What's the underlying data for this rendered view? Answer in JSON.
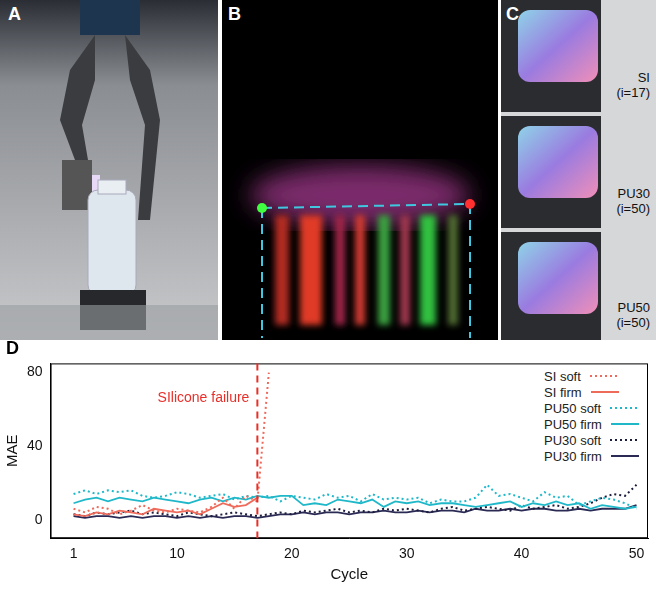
{
  "figure": {
    "panel_letters": [
      "A",
      "B",
      "C",
      "D"
    ],
    "panel_C_labels": [
      [
        "SI",
        "(i=17)"
      ],
      [
        "PU30",
        "(i=50)"
      ],
      [
        "PU50",
        "(i=50)"
      ]
    ]
  },
  "chart_data": {
    "type": "line",
    "x_label": "Cycle",
    "y_label": "MAE",
    "x": [
      1,
      2,
      3,
      4,
      5,
      6,
      7,
      8,
      9,
      10,
      11,
      12,
      13,
      14,
      15,
      16,
      17,
      18,
      19,
      20,
      21,
      22,
      23,
      24,
      25,
      26,
      27,
      28,
      29,
      30,
      31,
      32,
      33,
      34,
      35,
      36,
      37,
      38,
      39,
      40,
      41,
      42,
      43,
      44,
      45,
      46,
      47,
      48,
      49,
      50
    ],
    "xlim": [
      -1,
      51
    ],
    "xticks": [
      1,
      10,
      20,
      30,
      40,
      50
    ],
    "ylim": [
      -10,
      85
    ],
    "yticks": [
      0,
      40,
      80
    ],
    "grid": false,
    "legend": "upper right",
    "annotations": [
      {
        "text": "SIlicone failure",
        "x": 17,
        "y": 66,
        "color": "#e8302a",
        "line_style": "dashed"
      }
    ],
    "series": [
      {
        "name": "SI soft",
        "color": "#ee6a5a",
        "line_style": "dotted",
        "values": [
          6,
          4,
          7,
          6,
          3,
          5,
          8,
          5,
          4,
          6,
          5,
          4,
          7,
          12,
          6,
          13,
          10,
          80,
          null,
          null,
          null,
          null,
          null,
          null,
          null,
          null,
          null,
          null,
          null,
          null,
          null,
          null,
          null,
          null,
          null,
          null,
          null,
          null,
          null,
          null,
          null,
          null,
          null,
          null,
          null,
          null,
          null,
          null,
          null,
          null
        ]
      },
      {
        "name": "SI firm",
        "color": "#ee6a5a",
        "line_style": "solid",
        "values": [
          3,
          2,
          4,
          3,
          5,
          4,
          3,
          6,
          5,
          4,
          5,
          3,
          6,
          9,
          7,
          8,
          12,
          null,
          null,
          null,
          null,
          null,
          null,
          null,
          null,
          null,
          null,
          null,
          null,
          null,
          null,
          null,
          null,
          null,
          null,
          null,
          null,
          null,
          null,
          null,
          null,
          null,
          null,
          null,
          null,
          null,
          null,
          null,
          null,
          null
        ]
      },
      {
        "name": "PU50 soft",
        "color": "#1fb8c9",
        "line_style": "dotted",
        "values": [
          14,
          16,
          14,
          16,
          15,
          16,
          13,
          12,
          13,
          15,
          14,
          12,
          13,
          14,
          11,
          13,
          12,
          13,
          10,
          13,
          12,
          11,
          14,
          12,
          13,
          10,
          14,
          11,
          12,
          11,
          12,
          9,
          11,
          10,
          10,
          12,
          19,
          13,
          14,
          12,
          10,
          15,
          12,
          13,
          8,
          10,
          12,
          11,
          9,
          6
        ]
      },
      {
        "name": "PU50 firm",
        "color": "#1fb8c9",
        "line_style": "solid",
        "values": [
          9,
          11,
          12,
          10,
          12,
          11,
          10,
          12,
          11,
          10,
          9,
          11,
          12,
          10,
          12,
          11,
          13,
          12,
          13,
          13,
          8,
          9,
          8,
          11,
          10,
          9,
          11,
          7,
          10,
          9,
          10,
          8,
          9,
          9,
          8,
          7,
          8,
          9,
          10,
          7,
          9,
          8,
          10,
          8,
          9,
          6,
          8,
          7,
          6,
          7
        ]
      },
      {
        "name": "PU30 soft",
        "color": "#1c1c3c",
        "line_style": "dotted",
        "values": [
          3,
          2,
          4,
          3,
          4,
          5,
          3,
          4,
          3,
          2,
          4,
          3,
          2,
          3,
          4,
          3,
          2,
          3,
          4,
          3,
          5,
          4,
          5,
          6,
          4,
          5,
          4,
          6,
          5,
          6,
          5,
          4,
          6,
          7,
          5,
          6,
          7,
          6,
          5,
          8,
          6,
          7,
          8,
          6,
          7,
          9,
          12,
          14,
          13,
          19
        ]
      },
      {
        "name": "PU30 firm",
        "color": "#2a2a55",
        "line_style": "solid",
        "values": [
          2,
          1,
          2,
          2,
          1,
          2,
          1,
          2,
          2,
          1,
          2,
          1,
          2,
          1,
          2,
          2,
          1,
          2,
          3,
          3,
          4,
          3,
          4,
          4,
          3,
          4,
          4,
          5,
          4,
          4,
          5,
          4,
          5,
          5,
          4,
          6,
          5,
          5,
          6,
          5,
          6,
          6,
          5,
          5,
          6,
          5,
          6,
          6,
          6,
          8
        ]
      }
    ]
  }
}
